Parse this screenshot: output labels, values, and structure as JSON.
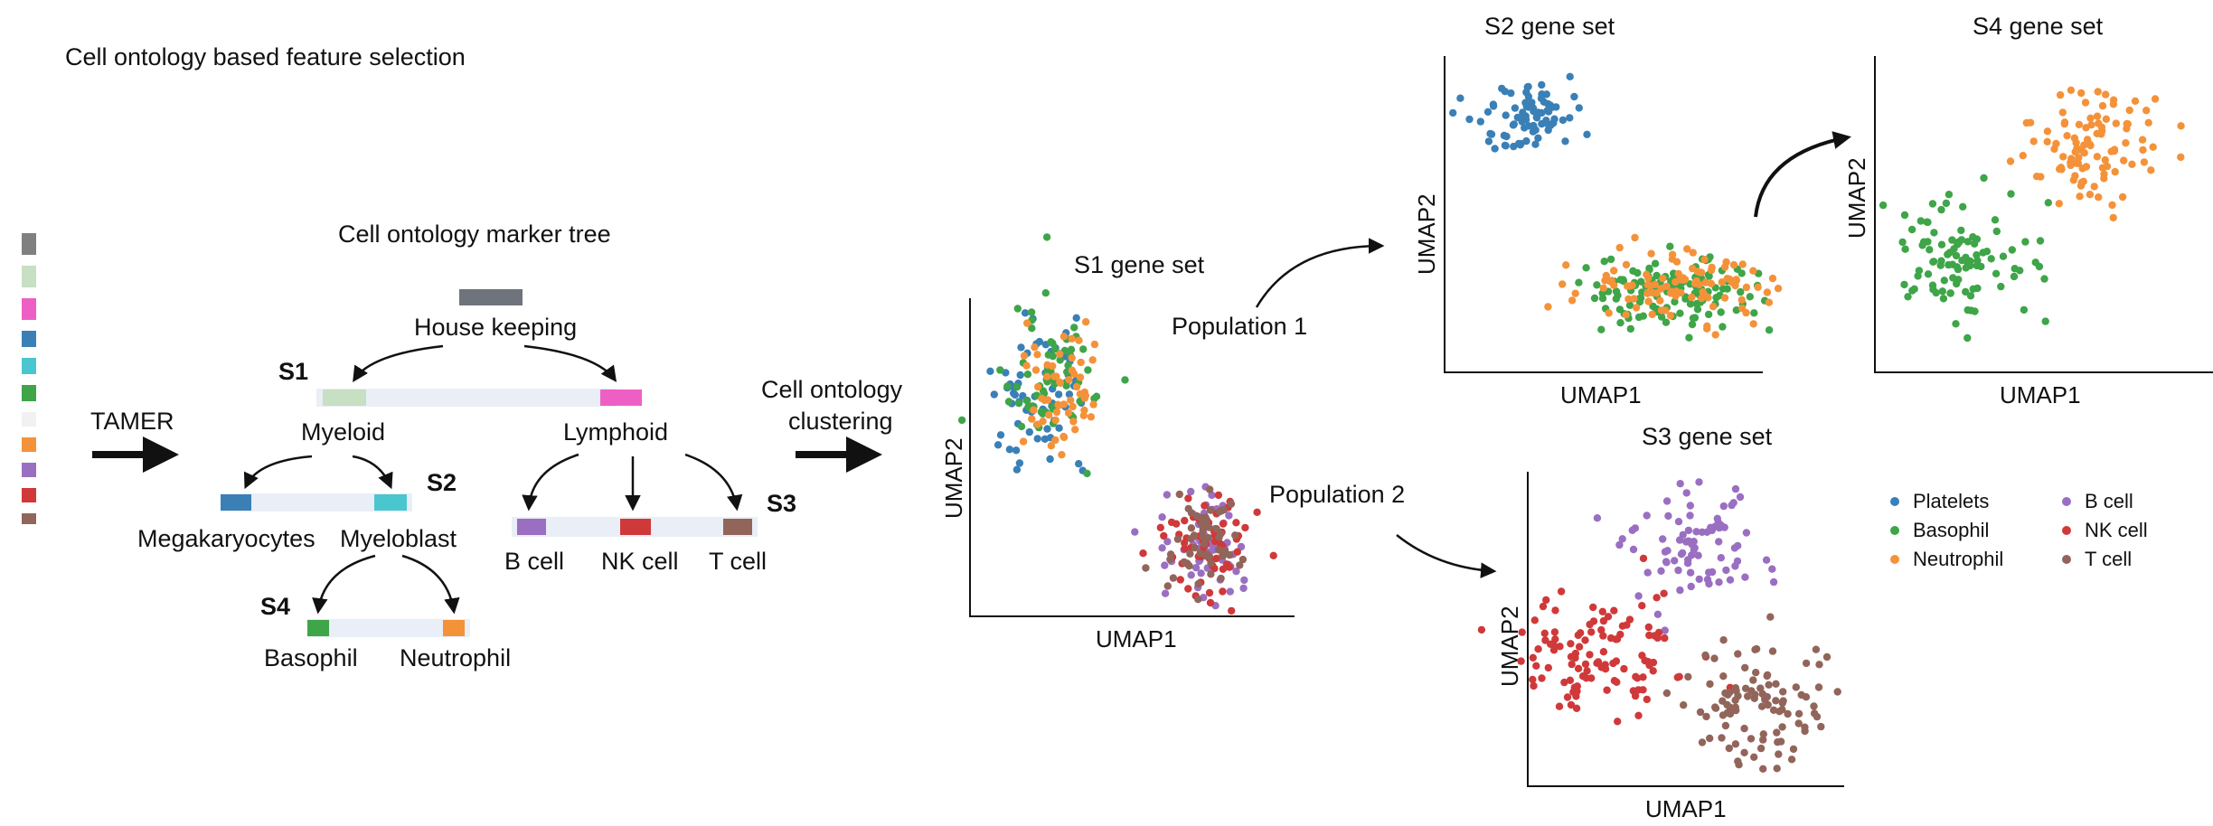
{
  "header": {
    "title": "Cell ontology based feature selection"
  },
  "colors": {
    "housekeeping": "#6f737b",
    "myeloid": "#c7dfc2",
    "lymphoid": "#ee5fc4",
    "megakaryocytes": "#3a80b6",
    "myeloblast": "#4ac6cf",
    "basophil": "#3ea548",
    "neutrophil": "#f4923a",
    "bcell": "#9a6fc2",
    "nkcell": "#d0393a",
    "tcell": "#92655b",
    "bar_bg": "#e9eef7"
  },
  "marker_strip": {
    "segments": [
      "#808080",
      "#c7dfc2",
      "#ee5fc4",
      "#3a80b6",
      "#4ac6cf",
      "#3ea548",
      "#f1f1f1",
      "#f4923a",
      "#9a6fc2",
      "#d0393a",
      "#92655b"
    ]
  },
  "left": {
    "tamer_label": "TAMER"
  },
  "tree": {
    "title": "Cell ontology marker tree",
    "root": "House keeping",
    "s1": "S1",
    "s2": "S2",
    "s3": "S3",
    "s4": "S4",
    "myeloid": "Myeloid",
    "lymphoid": "Lymphoid",
    "megakaryocytes": "Megakaryocytes",
    "myeloblast": "Myeloblast",
    "bcell": "B cell",
    "nkcell": "NK cell",
    "tcell": "T cell",
    "basophil": "Basophil",
    "neutrophil": "Neutrophil"
  },
  "middle": {
    "clustering_line1": "Cell ontology",
    "clustering_line2": "clustering"
  },
  "plots": {
    "s1": {
      "title": "S1 gene set",
      "xlabel": "UMAP1",
      "ylabel": "UMAP2"
    },
    "s2": {
      "title": "S2 gene set",
      "xlabel": "UMAP1",
      "ylabel": "UMAP2"
    },
    "s3": {
      "title": "S3 gene set",
      "xlabel": "UMAP1",
      "ylabel": "UMAP2"
    },
    "s4": {
      "title": "S4 gene set",
      "xlabel": "UMAP1",
      "ylabel": "UMAP2"
    },
    "population1": "Population 1",
    "population2": "Population 2"
  },
  "legend": {
    "items": [
      {
        "label": "Platelets",
        "color": "#3a80b6"
      },
      {
        "label": "Basophil",
        "color": "#3ea548"
      },
      {
        "label": "Neutrophil",
        "color": "#f4923a"
      },
      {
        "label": "B cell",
        "color": "#9a6fc2"
      },
      {
        "label": "NK cell",
        "color": "#d0393a"
      },
      {
        "label": "T cell",
        "color": "#92655b"
      }
    ]
  }
}
